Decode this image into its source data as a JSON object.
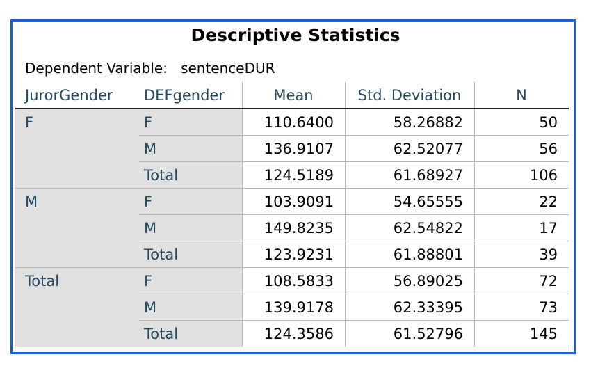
{
  "title": "Descriptive Statistics",
  "dependent_label": "Dependent Variable:",
  "dependent_variable": "sentenceDUR",
  "table": {
    "header": [
      "JurorGender",
      "DEFgender",
      "Mean",
      "Std. Deviation",
      "N"
    ],
    "groups": [
      {
        "label": "F",
        "rows": [
          {
            "def": "F",
            "mean": "110.6400",
            "sd": "58.26882",
            "n": "50"
          },
          {
            "def": "M",
            "mean": "136.9107",
            "sd": "62.52077",
            "n": "56"
          },
          {
            "def": "Total",
            "mean": "124.5189",
            "sd": "61.68927",
            "n": "106"
          }
        ]
      },
      {
        "label": "M",
        "rows": [
          {
            "def": "F",
            "mean": "103.9091",
            "sd": "54.65555",
            "n": "22"
          },
          {
            "def": "M",
            "mean": "149.8235",
            "sd": "62.54822",
            "n": "17"
          },
          {
            "def": "Total",
            "mean": "123.9231",
            "sd": "61.88801",
            "n": "39"
          }
        ]
      },
      {
        "label": "Total",
        "rows": [
          {
            "def": "F",
            "mean": "108.5833",
            "sd": "56.89025",
            "n": "72"
          },
          {
            "def": "M",
            "mean": "139.9178",
            "sd": "62.33395",
            "n": "73"
          },
          {
            "def": "Total",
            "mean": "124.3586",
            "sd": "61.52796",
            "n": "145"
          }
        ]
      }
    ]
  }
}
